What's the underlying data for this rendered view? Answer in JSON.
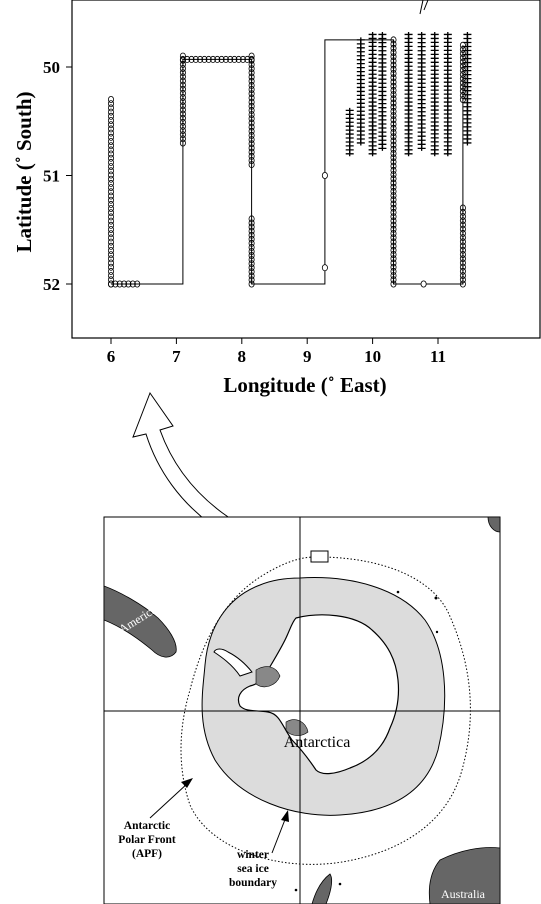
{
  "chart_data": {
    "type": "line",
    "title": "",
    "xlabel": "Longitude (˚ East)",
    "ylabel": "Latitude (˚ South)",
    "xlim": [
      5.4,
      11.9
    ],
    "ylim": [
      52.5,
      49.5
    ],
    "y_inverted": true,
    "grid": false,
    "xticks": [
      6,
      7,
      8,
      9,
      10,
      11
    ],
    "yticks": [
      50,
      51,
      52
    ],
    "series": [
      {
        "marker": "circle",
        "segments": [
          {
            "x": 6.0,
            "y": [
              50.3,
              52.0
            ]
          },
          {
            "x": [
              6.0,
              6.4
            ],
            "y": 52.0
          },
          {
            "x": 7.1,
            "y": [
              49.9,
              50.7
            ]
          },
          {
            "x": [
              7.1,
              8.15
            ],
            "y": 49.93
          },
          {
            "x": 8.15,
            "y": [
              49.9,
              50.9
            ]
          },
          {
            "x": 8.15,
            "y": [
              51.4,
              52.0
            ]
          },
          {
            "x": 10.32,
            "y": [
              49.75,
              52.0
            ]
          },
          {
            "x": 11.38,
            "y": [
              49.8,
              50.3
            ]
          },
          {
            "x": 11.38,
            "y": [
              51.3,
              52.0
            ]
          }
        ],
        "points": [
          [
            9.27,
            51.0
          ],
          [
            9.27,
            51.85
          ],
          [
            10.78,
            52.0
          ]
        ]
      },
      {
        "marker": "plus",
        "segments": [
          {
            "x": 9.65,
            "y": [
              50.4,
              50.8
            ]
          },
          {
            "x": 9.82,
            "y": [
              49.75,
              50.7
            ]
          },
          {
            "x": 10.0,
            "y": [
              49.7,
              50.8
            ]
          },
          {
            "x": 10.15,
            "y": [
              49.7,
              50.75
            ]
          },
          {
            "x": 10.55,
            "y": [
              49.7,
              50.8
            ]
          },
          {
            "x": 10.75,
            "y": [
              49.7,
              50.75
            ]
          },
          {
            "x": 10.95,
            "y": [
              49.7,
              50.8
            ]
          },
          {
            "x": 11.15,
            "y": [
              49.7,
              50.8
            ]
          },
          {
            "x": 11.45,
            "y": [
              49.7,
              50.7
            ]
          }
        ]
      },
      {
        "marker": "none",
        "line": [
          [
            6.0,
            52.0
          ],
          [
            7.1,
            52.0
          ],
          [
            7.1,
            49.93
          ],
          [
            8.15,
            49.93
          ],
          [
            8.15,
            52.0
          ],
          [
            9.27,
            52.0
          ],
          [
            9.27,
            49.75
          ],
          [
            10.32,
            49.75
          ],
          [
            10.32,
            52.0
          ],
          [
            11.38,
            52.0
          ],
          [
            11.38,
            49.8
          ]
        ]
      }
    ]
  },
  "map": {
    "labels": {
      "continent": "Antarctica",
      "south_america": "S. America",
      "australia": "Australia"
    },
    "annotations": {
      "apf": [
        "Antarctic",
        "Polar Front",
        "(APF)"
      ],
      "sea_ice": [
        "winter",
        "sea ice",
        "boundary"
      ]
    },
    "colors": {
      "land": "#666666",
      "sea_ice": "#dcdcdc",
      "ocean": "#ffffff",
      "line": "#000000"
    }
  },
  "icons": {
    "callout": "curved-arrow-icon"
  }
}
